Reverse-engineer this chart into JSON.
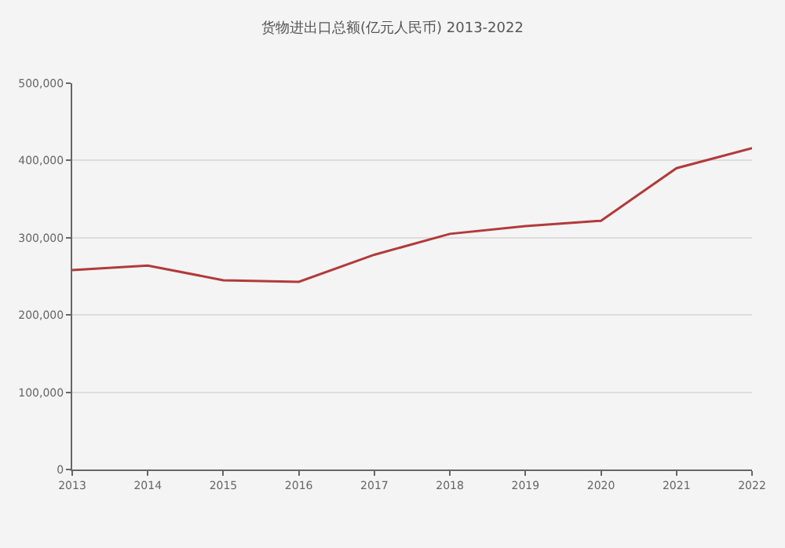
{
  "chart_data": {
    "type": "line",
    "title": "货物进出口总额(亿元人民币) 2013-2022",
    "x": [
      2013,
      2014,
      2015,
      2016,
      2017,
      2018,
      2019,
      2020,
      2021,
      2022
    ],
    "series": [
      {
        "color": "#b23a3a",
        "values": [
          258000,
          264000,
          245000,
          243000,
          278000,
          305000,
          315000,
          322000,
          390000,
          416000
        ]
      }
    ],
    "xlim": [
      2013,
      2022
    ],
    "xticks": [
      2013,
      2014,
      2015,
      2016,
      2017,
      2018,
      2019,
      2020,
      2021,
      2022
    ],
    "ylim": [
      0,
      500000
    ],
    "yticks": [
      {
        "value": 0,
        "label": "0"
      },
      {
        "value": 100000,
        "label": "100,000"
      },
      {
        "value": 200000,
        "label": "200,000"
      },
      {
        "value": 300000,
        "label": "300,000"
      },
      {
        "value": 400000,
        "label": "400,000"
      },
      {
        "value": 500000,
        "label": "500,000"
      }
    ],
    "grid": "y",
    "marker": "none",
    "line_style": "solid"
  }
}
